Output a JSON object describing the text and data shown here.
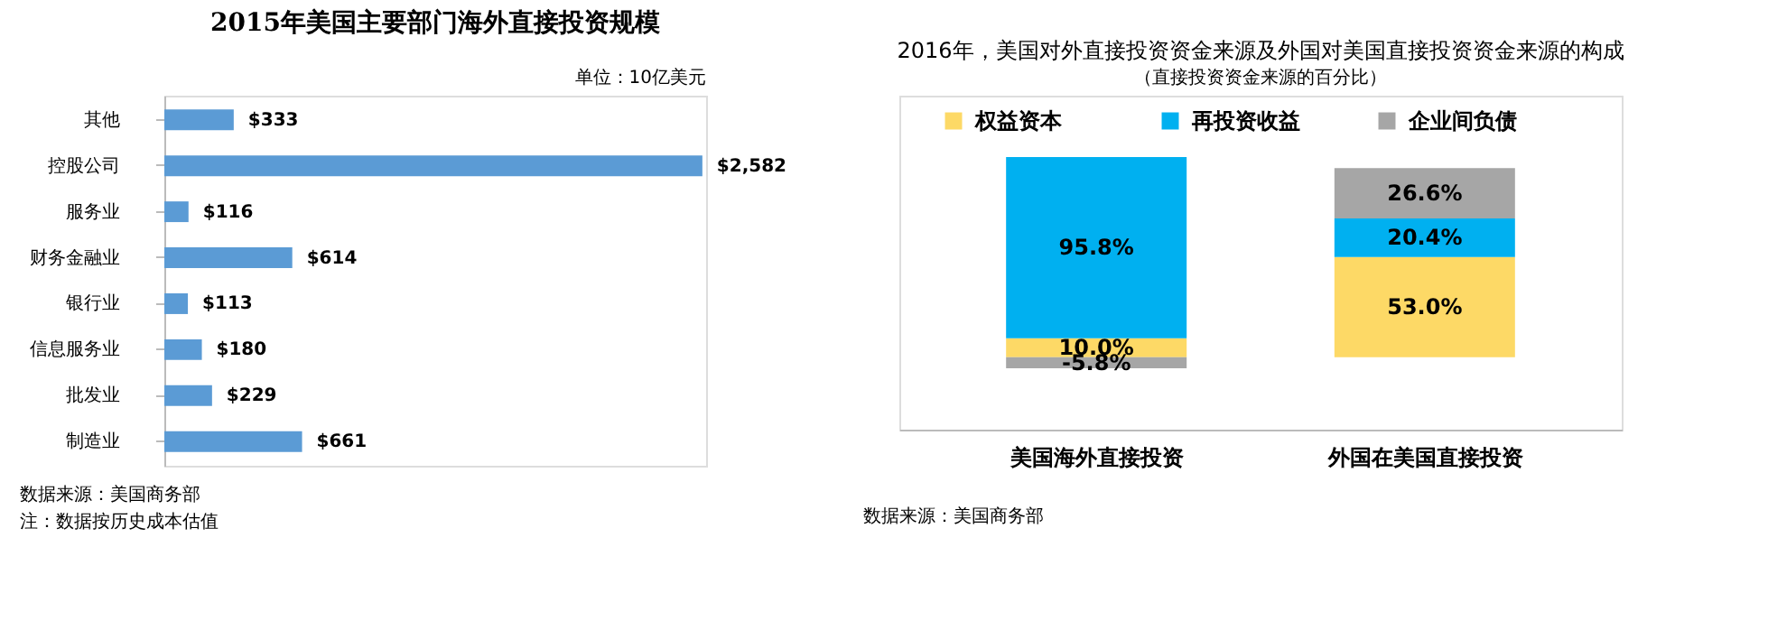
{
  "chart_data": [
    {
      "type": "bar",
      "orientation": "horizontal",
      "title": "2015年美国主要部门海外直接投资规模",
      "categories": [
        "其他",
        "控股公司",
        "服务业",
        "财务金融业",
        "银行业",
        "信息服务业",
        "批发业",
        "制造业"
      ],
      "values": [
        333,
        2582,
        116,
        614,
        113,
        180,
        229,
        661
      ],
      "value_labels": [
        "$333",
        "$2,582",
        "$116",
        "$614",
        "$113",
        "$180",
        "$229",
        "$661"
      ],
      "color": "#5b9bd5",
      "grid": false,
      "legend": false,
      "annotations": [
        "单位：10亿美元",
        "数据来源：美国商务部",
        "注：数据按历史成本估值"
      ]
    },
    {
      "type": "bar",
      "stacked": true,
      "title": "2016年，美国对外直接投资资金来源及外国对美国直接投资资金来源的构成",
      "subtitle": "（直接投资资金来源的百分比）",
      "categories": [
        "美国海外直接投资",
        "外国在美国直接投资"
      ],
      "series": [
        {
          "name": "权益资本",
          "color": "#fdd966",
          "values": [
            10.0,
            53.0
          ],
          "value_labels": [
            "10.0%",
            "53.0%"
          ]
        },
        {
          "name": "再投资收益",
          "color": "#00b0f0",
          "values": [
            95.8,
            20.4
          ],
          "value_labels": [
            "95.8%",
            "20.4%"
          ]
        },
        {
          "name": "企业间负债",
          "color": "#a6a6a6",
          "values": [
            -5.8,
            26.6
          ],
          "value_labels": [
            "-5.8%",
            "26.6%"
          ]
        }
      ],
      "grid": false,
      "legend": "top",
      "annotations": [
        "数据来源：美国商务部"
      ]
    }
  ]
}
